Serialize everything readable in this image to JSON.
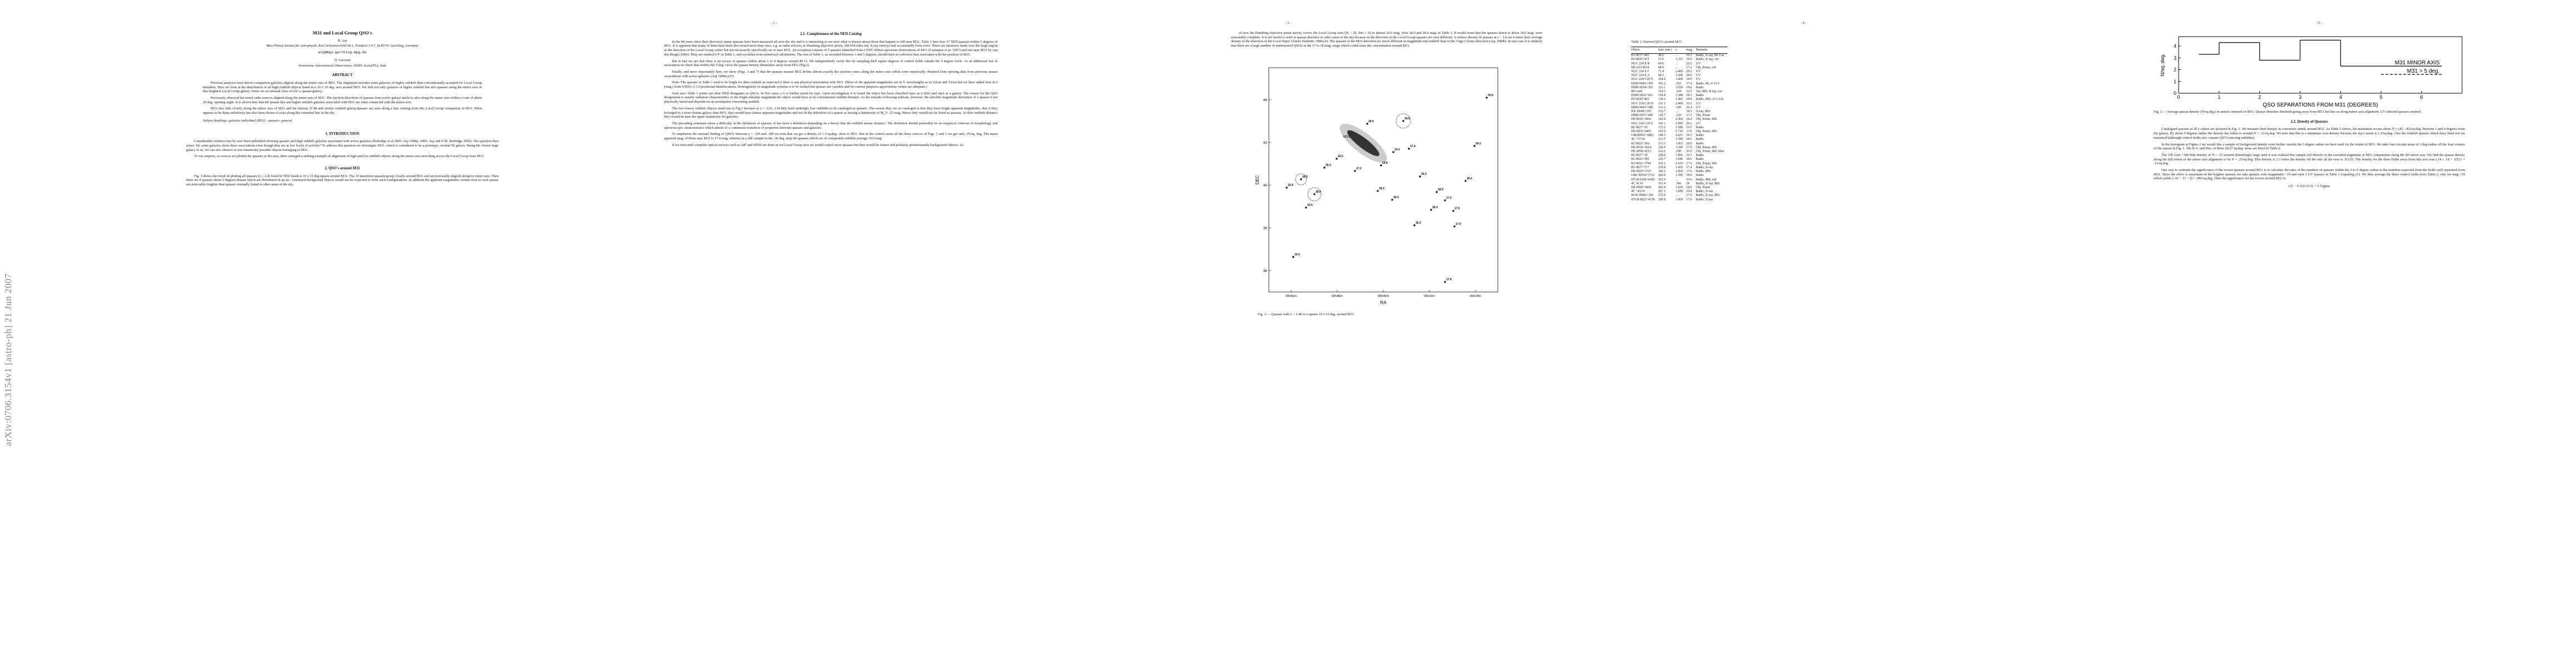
{
  "page1": {
    "arxiv_stamp": "arXiv:0706.3154v1  [astro-ph]  21 Jun 2007",
    "title": "M31 and Local Group QSO's",
    "authors": [
      {
        "name": "H. Arp",
        "affiliation": "Max-Planck-Institut für Astrophysik, Karl Schwarzschild-Str.1, Postfach 1317, D-85741 Garching, Germany",
        "email": "arp@mpa-garching.mpg.de"
      },
      {
        "name": "D. Carosati",
        "affiliation": "Armenzano Astronomical Observatory, 06081 Assisi(PG), Italy"
      }
    ],
    "abstract_heading": "ABSTRACT",
    "abstract": [
      "Previous analyses have shown companion galaxies aligned along the minor axis of M31. The alignment includes some galaxies of higher redshift than conventionally accepted for Local Group members. Here we look at the distribution of all high redshift objects listed in a 10 x 10 deg. area around M31. We find not only galaxies of higher redshift but also quasars along the minor axis of this brightest Local Group galaxy. Some are an unusual class of low z, quasar-galaxy.",
      "Previously observed hot noted radio sources aligned along the minor axis of M31. The ejection directions of quasars from active galaxy nuclei is also along the minor axis within a cone of about 20 deg. opening angle. It is shown here that the quasar-like and higher redshift galaxies associated with M31 are often connected with the minor axis.",
      "M33 also falls closely along the minor axis of M31 and the famous 3C48 and similar redshift galaxy/quasars are seen along a line coming from this Local Group companion of M31. What appears to be dusty nebulosity has also been shown to exist along this extended line in the sky."
    ],
    "subject_headings": "Subject headings: galaxies:individual (M31) - quasars: general",
    "section1": "1.   INTRODUCTION",
    "section1_paragraphs": [
      "Considerable evidence has by now been published showing quasars and high redshift galaxies associated with active galaxies (Burbidge et al 2003; Arp 1998a; 2003; Arp and E.M. Burbidge 2005). The question then arises: Do some galaxies show these associations even though they are at low levels of activity? To address this question we investigate M31, which is considered to be a prototype, normal Sb galaxy. Being the closest large galaxy to us, we can also observe to low luminosity possible objects belonging to M31.",
      "To our surprise, as soon as we plotted the quasars in the area, there emerged a striking example of alignment of high and low redshift objects along the minor axis stretching across the Local Group from M31."
    ],
    "section2": "2.   QSO's around M31",
    "section2_paragraphs": [
      "Fig. 1 shows the result of plotting all quasars (z ≤ 2.4) listed in NED inside a 10 x 10 deg square around M31. The 10 innermost quasars group closely around M31 and are noticeably aligned along its minor axis. Then there are 9 quasars about 3 degrees distant which are distributed in an arc. Unrelated background objects would not be expected to form such configurations. In addition the apparent magnitudes written next to each quasar are noticeably brighter than quasars normally found in other areas of the sky."
    ]
  },
  "page2": {
    "page_number": "- 2 -",
    "section": "2.1.   Completeness of the NED Catalog",
    "paragraphs": [
      "In the 44 years since their discovery many quasars have been measured all over the sky and it is interesting to see now what is known about those that happen to fall near M31. Table 1 here lists 37 NED quasars within 5 degrees of M31. It is apparent that many of them have been discovered more than once, e.g. as radio sources, in Hamburg objective prism, 2MASS infra red, X-ray surveys and occasionally from color. These are measures made over the large region in the direction of the Local Group center but not necessarily specifically on or near M31. An exception consists of 5 quasars identified from CFHT slitless spectrum observations of M31 (Crampton et al. 1997) and one near M31 by van den Bergh (1966). They are marked UV in Table 1, and excluded from numerical calculations. The rest of Table 1, as recorded between 1 and 5 degrees, should have no selection bias associated with the position of M31.",
      "But in fact we see that there is an excess of quasars within about 1 to 4 degrees around M 31. We independently verify this by sampling 84.8 square degrees of control fields outside the 5 degree circle. As an additional test of association we show that within this 5 deg. circle the quasar density diminishes away from M31 (Fig.2).",
      "Finally, and more importantly here, we show (Figs. 3 and 7) that the quasars nearest M31 define almost exactly the ejection cones along the minor axis which were empirically obtained from ejecting data from previous quasar associations with active galaxies (Arp 1998a p37).",
      "Note: The quasars in Table 1 tend to be bright for their redshift as expected if there is any physical association with M31. (Most of the apparent magnitudes are in V wavelengths as in Véron and Véron but we have added four in z (mag.) from USNO-A 1.0 positional identifications. Homogeneity in magnitude systems is to be wished but quasars are variable and for current purposes approximate values are adequate.)",
      "Note also: Table 1 prints out what NED designates as QSO's. In five cases a G is further noted for type. Upon investigation it is found the object has been classified once as a QSO and once as a galaxy. The reason for the QSO designation is usually radiation characteristics or the bright absolute magnitude the object would have at its conventional redshift distance. As the remarks following indicate, however, the absolute magnitude derivation of a quasar is not physically based and depends on an assumption concerning redshift.",
      "The two lowest redshift objects stand out in Fig.1 because at z = .120, .134 they have strikingly low redshifts to be cataloged as quasars. The reason they are so cataloged is that they have bright apparent magnitudes. But if they belonged to a more distant galaxy than M31, they would have fainter apparent magnitudes and not fit the definition of a quasar as having a luminosity of M_V -23 mag. Hence they would not be listed as quasars. At their redshift distance they would be near the upper luminosity for galaxies.",
      "The preceding comment raises a difficulty in the definition of quasars. It has been a definition depending on a theory that the redshift means distance. The definition should preferably be an empirical criterion of morphology and spectroscopic characteristics which admits of a continuous transition of properties between quasars and galaxies.",
      "To emphasize the unusual finding of QSO's between z = .120 and .189 we note that we get a density of 1.1/sq.deg. close to M31. But in the control areas all the three sources of Figs. 1 and 3 we get only .05/sq. deg. The mean apparent mag. of those near M31 is 17.4 mag. whereas in a 2dF sample in the -30 deg. strip the quasars which are of comparable redshift average 19.0 mag.",
      "If we wait until complete optical surveys such as 2dF and SDSS are done in our Local Group area we would expect more quasars but they would be fainter and probably predominantly background objects. As"
    ]
  },
  "page3": {
    "page_number": "- 3 -",
    "paragraphs": [
      "of now the Hamburg objective prism survey covers the Local Group area (|b| > 20, Dec.> 0) to almost 18.0 mag. Note 18.0 and 18.4 mag. in Table 1. It would seem that the quasars down to about 18.0 mag. were reasonably complete. It is not useful to refer to quasar densities in other areas of the sky because in the direction of the Local Group quasars are very different. A surface density of quasars at z > 1.0 are 6 times their average density in the direction of the Local Super Cluster (Sulentic 1986a,b). The quasars in the M31 direction are much different in magnitude and redshift than in the Virgo Cluster direction (Arp 1984b). In any case it is unlikely that there are a large number of unmeasured QSO's in the 17 to 18 mag. range which could erase the concentration around M31."
    ],
    "figure": {
      "y_label": "DEC",
      "x_label": "RA",
      "galaxy_label": "M31",
      "ylim": [
        35,
        45.5
      ],
      "yticks": [
        36,
        38,
        40,
        42,
        44
      ],
      "xticks": [
        "00h56m",
        "00h48m",
        "00h40m",
        "00h32m",
        "00h24m"
      ],
      "point_labels": [
        "19.3",
        "19.9",
        "18.5",
        "20.5",
        "17.2",
        "20.2",
        "18.9",
        "17.4",
        "18.0",
        "16.5",
        "18.3",
        "18.8",
        "19.3",
        "16.4",
        "18.3",
        "17.2",
        "18.4",
        "20.2",
        "19.5",
        "17.0",
        "18.3",
        "18.5",
        "20.0",
        "17.5",
        "16.0",
        "17.6"
      ]
    },
    "caption": "Fig. 1.— Quasars with z < 2.40 in a square 10 x 10 deg. around M31."
  },
  "page4": {
    "page_number": "- 4 -",
    "table": {
      "caption": "Table 1: Known QSO's around M31",
      "header": [
        "Object",
        "r(arc min.)",
        "z",
        "mag.",
        "Remarks"
      ],
      "rows": [
        [
          "B3 0037+405",
          "38.5",
          "...",
          "19.3",
          "Radio, X-ray, BL Lac"
        ],
        [
          "B3 0035+413",
          "53.0",
          "1.353",
          "19.9",
          "Radio, X-ray, var"
        ],
        [
          "NGC 224 E R",
          "64.9",
          "...",
          "20.5",
          "UV"
        ],
        [
          "MLA93 0034",
          "68.9",
          "...",
          "17.2",
          "Obj. Prism, red"
        ],
        [
          "NGC 224 E J",
          "71.4",
          "2.400",
          "20.2",
          "UV"
        ],
        [
          "NGC 224 E A",
          "84.3",
          "1.600",
          "18.5",
          "UV"
        ],
        [
          "NGC 224 C29 V",
          "104.4",
          "1.400",
          "18.9",
          "UV"
        ],
        [
          "HS89 0045+395",
          "105.3",
          ".252",
          "17.4",
          "Radio, IR, z=16.5"
        ],
        [
          "HS89 0034+393",
          "111.1",
          "1.938",
          "18.0",
          "Radio"
        ],
        [
          "RO And",
          "114.3",
          ".334",
          "16.5",
          "Var, IRS, X-ray, var"
        ],
        [
          "HS89 0032+421",
          "118.4",
          "1.588",
          "18.3",
          "Radio"
        ],
        [
          "B3 0050+403",
          "130.2",
          "1.485",
          "18.8",
          "Radio, IRS, 15.5 I.D."
        ],
        [
          "NGC 224 C29 D",
          "131.1",
          "2.400",
          "19.3",
          "UV"
        ],
        [
          "HS89 0043+388",
          "131.2",
          ".189",
          "16.4",
          "UV"
        ],
        [
          "RX J0049+393",
          "132.7",
          "...",
          "18.3",
          "X-ray, IRS"
        ],
        [
          "HS89 0033+400",
          "139.7",
          ".120",
          "17.2",
          "Obj. Prism"
        ],
        [
          "HS 0036+3842",
          "143.0",
          "2.360",
          "18.4",
          "Obj. Prism, IRS"
        ],
        [
          "NGC 224 C29 U",
          "143.1",
          "2.900",
          "20.2",
          "UV"
        ],
        [
          "B2 0027+39",
          "172.2",
          "1.588",
          "19.5",
          "Radio"
        ],
        [
          "HS 0035+4405",
          "193.0",
          "2.710",
          "17.0",
          "Obj. Prism, IRS"
        ],
        [
          "GB6J0052+4402",
          "198.3",
          "2.623",
          "18.3",
          "Radio"
        ],
        [
          "4C +37.03",
          "211.5",
          "1.700",
          "18.5",
          "Radio"
        ],
        [
          "B2 0022+38A",
          "213.3",
          "1.963",
          "20.0",
          "Radio"
        ],
        [
          "HS 0036+3624",
          "220.4",
          "1.590",
          "17.5",
          "Obj. Prism, IRS"
        ],
        [
          "HS 0058+4213",
          "222.2",
          ".190",
          "16.0",
          "Obj. Prism, IRS, blue"
        ],
        [
          "B2 0027+39",
          "228.6",
          "1.966",
          "19.3",
          "Radio"
        ],
        [
          "B2 0022+395",
          "229.7",
          "1.946",
          "18.6",
          "Radio"
        ],
        [
          "B3 0052+3704",
          "236.1",
          "2.410",
          "17.6",
          "Obj. Prism, IRS"
        ],
        [
          "B3 0027+377",
          "239.8",
          "1.450",
          "17.4",
          "Radio, X-ray"
        ],
        [
          "HS 0029+3725",
          "246.2",
          "1.850",
          "17.6",
          "Radio, IRS"
        ],
        [
          "GB6 J0034+3712",
          "260.0",
          "1.390",
          "18.9",
          "Radio"
        ],
        [
          "87GB 0100+4306",
          "262.6",
          "...",
          "16.6",
          "Radio, IRS, red"
        ],
        [
          "4C 36.01",
          "263.4",
          ".366",
          "18",
          "Radio, X-ray, IRS"
        ],
        [
          "HS 0058+3820",
          "265.4",
          "1.920",
          "18.0",
          "Obj. Prism"
        ],
        [
          "4C +43.01",
          "267.1",
          "1.690",
          "19.4",
          "Radio, X-ray"
        ],
        [
          "RGB J0042+366",
          "275.0",
          "...",
          "17.5",
          "Radio, X-ray, IRS"
        ],
        [
          "87GB 0025+4158",
          "299.8",
          "1.050",
          "17.6",
          "Radio, X-ray"
        ]
      ]
    }
  },
  "page5": {
    "page_number": "- 5 -",
    "figure": {
      "type": "step",
      "y_label": "N/sq. deg.",
      "x_label": "QSO SEPARATIONS FROM M31 (DEGREES)",
      "xlim": [
        0,
        7
      ],
      "ylim": [
        0,
        4.8
      ],
      "xticks": [
        0,
        1,
        2,
        3,
        4,
        5,
        6
      ],
      "yticks": [
        0,
        1,
        2,
        3,
        4
      ],
      "series": [
        {
          "name": "M31 MINOR AXIS",
          "bins": [
            0.5,
            1,
            2,
            3,
            4,
            6.5
          ],
          "values": [
            3.3,
            4.3,
            2.8,
            4.5,
            2.3
          ]
        },
        {
          "name": "M31 > 5 deg.",
          "bins": [
            5,
            6.5
          ],
          "values": [
            1.6
          ]
        }
      ]
    },
    "caption": "Fig. 2.— Average quasar density (N/sq.deg.) in annuli centered on M31. Quasar densities diminish going away from M31 but less so along minor axis alignment. UV selected quasars omitted.",
    "section": "2.2.   Density of Quasars",
    "paragraphs": [
      "Catalogued quasars of all z values are pictured in Fig. 3. We measure their density in concentric annuli around M31. As Table 2 shows, the maximum occurs about N = (42 - 45)/sq.deg. between 1 and 4 degrees from the galaxy. By about 5 degrees radius the density has fallen to around N = .11/sq.deg. We note that this is a minimum over-density because the sky's mean is 1.3/sq.deg. Also the redshift quasars which have been not yet measured (although control fields also contain QSO's missing redshifts).",
      "In the histogram in Figure 2 we would like a sample of background density even further outside the 5 degree radius we have used for the extent of M31. We take four circular areas of 3 deg radius off the four corners of the square in Fig. 1. The R.A. and Dec. of these 28.27 sq.deg. areas are listed in Table 2.",
      "The 15h 12m +34d 00m density of N = .32 seemed disturbingly large until it was realized that sample fell directly in the extended alignment of M31 companions along the SE minor axis. We find the quasar density along the full extent of the minor axis alignment to be N = .25/sq.deg. This density is 2.3 times the density off the axis all the way to 3C120. The density for the three fields away from this axis was (.14 ± .18 + .05)/3 = .11/sq.deg.",
      "One way to estimate the significance of the excess quasars around M31 is to calculate the ratio of the numbers of quasars within the 0 to 5 degree radius to the numbers expected from the fields well separated from M31. Since the effect is maximum in the brighter quasars we take quasars with magnitudes <19 and omit 3 UV quasars in Table 1 (equaling 21). We then average the three control fields from Table 2, only for mag.<19 which yields (.14 + .11 + 0) = .083/sq.deg. Then the significance for the excess around M31 is:"
    ],
    "equation": "(21 − 6.52)/√6.52 = 5.7sigma"
  }
}
